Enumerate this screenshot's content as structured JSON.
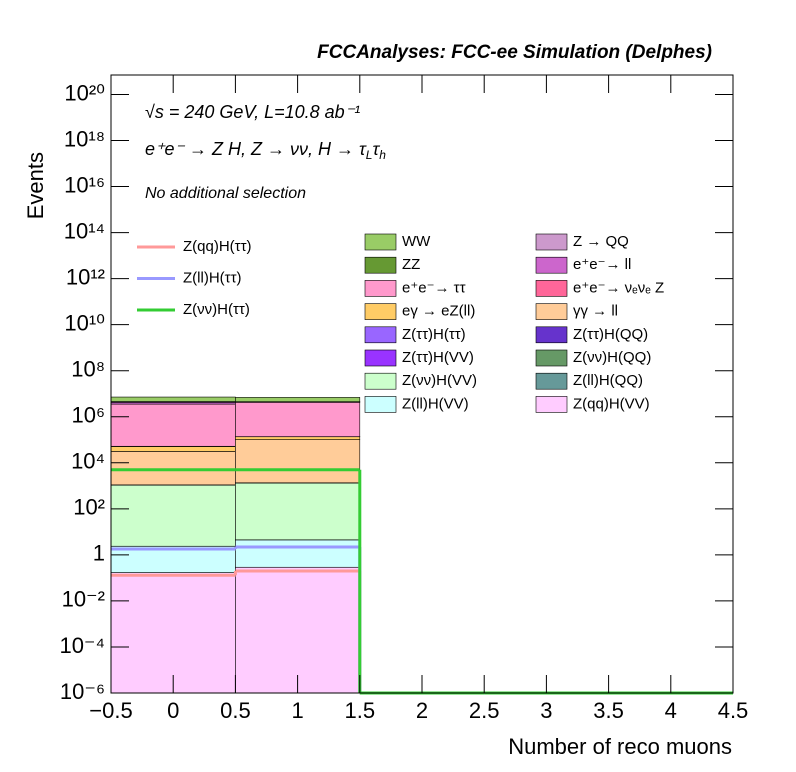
{
  "chart_data": {
    "type": "stacked_histogram",
    "title": "FCCAnalyses: FCC-ee Simulation (Delphes)",
    "energy_text": "√s = 240 GeV, L=10.8 ab⁻¹",
    "process_parts": [
      {
        "text": "e⁺e⁻ → Z H, Z → νν, H → τ"
      },
      {
        "text": "L",
        "sub": true
      },
      {
        "text": "τ"
      },
      {
        "text": "h",
        "sub": true
      }
    ],
    "selection_text": "No additional selection",
    "x_label": "Number of reco muons",
    "y_label": "Events",
    "log_y": true,
    "bins": [
      -0.5,
      0.5,
      1.5,
      2.5,
      3.5,
      4.5
    ],
    "xlim": [
      -0.5,
      4.5
    ],
    "ylim": [
      1e-06,
      7e+20
    ],
    "xticks": [
      {
        "value": -0.5,
        "label": "−0.5"
      },
      0,
      0.5,
      1,
      1.5,
      2,
      2.5,
      3,
      3.5,
      4,
      4.5
    ],
    "yticks": [
      {
        "value": 1e-06,
        "label": "10⁻⁶"
      },
      {
        "value": 0.0001,
        "label": "10⁻⁴"
      },
      {
        "value": 0.01,
        "label": "10⁻²"
      },
      1,
      {
        "value": 100,
        "label": "10²"
      },
      {
        "value": 10000,
        "label": "10⁴"
      },
      {
        "value": 1000000.0,
        "label": "10⁶"
      },
      {
        "value": 100000000.0,
        "label": "10⁸"
      },
      {
        "value": 10000000000.0,
        "label": "10¹⁰"
      },
      {
        "value": 1000000000000.0,
        "label": "10¹²"
      },
      {
        "value": 100000000000000.0,
        "label": "10¹⁴"
      },
      {
        "value": 1e+16,
        "label": "10¹⁶"
      },
      {
        "value": 1e+18,
        "label": "10¹⁸"
      },
      {
        "value": 1e+20,
        "label": "10²⁰"
      }
    ],
    "series": [
      {
        "name": "WW",
        "color": "#99cc66",
        "values": [
          2600000,
          2400000,
          0,
          0,
          0
        ]
      },
      {
        "name": "Z → QQ",
        "color": "#cc99cc",
        "values": [
          300000,
          100000,
          0,
          0,
          0
        ]
      },
      {
        "name": "ZZ",
        "color": "#669933",
        "values": [
          40000,
          30000,
          0,
          0,
          0
        ]
      },
      {
        "name": "e⁺e⁻→ ll",
        "color": "#cc66cc",
        "values": [
          680000,
          150000,
          0,
          0,
          0
        ]
      },
      {
        "name": "e⁺e⁻→ ττ",
        "color": "#ff99cc",
        "values": [
          3500000,
          4100000,
          0,
          0,
          0
        ]
      },
      {
        "name": "e⁺e⁻→ νₑνₑ Z",
        "color": "#ff6699",
        "values": [
          1100,
          1350,
          0,
          0,
          0
        ]
      },
      {
        "name": "eγ → eZ(ll)",
        "color": "#ffcc66",
        "values": [
          20000,
          34000,
          0,
          0,
          0
        ]
      },
      {
        "name": "γγ → ll",
        "color": "#ffcc99",
        "values": [
          30000,
          100000,
          0,
          0,
          0
        ]
      },
      {
        "name": "Z(ττ)H(ττ)",
        "color": "#9966ff",
        "values": [
          3,
          3,
          0,
          0,
          0
        ]
      },
      {
        "name": "Z(ττ)H(QQ)",
        "color": "#6633cc",
        "values": [
          4.5e-05,
          0,
          0,
          0,
          0
        ]
      },
      {
        "name": "Z(ττ)H(VV)",
        "color": "#9933ff",
        "values": [
          12,
          12.5,
          0,
          0,
          0
        ]
      },
      {
        "name": "Z(νν)H(QQ)",
        "color": "#669966",
        "values": [
          0.32,
          1.05,
          0,
          0,
          0
        ]
      },
      {
        "name": "Z(νν)H(VV)",
        "color": "#ccffcc",
        "values": [
          1080,
          1330,
          0,
          0,
          0
        ]
      },
      {
        "name": "Z(ll)H(QQ)",
        "color": "#669999",
        "values": [
          0.0068,
          0.0068,
          0,
          0,
          0
        ]
      },
      {
        "name": "Z(ll)H(VV)",
        "color": "#ccffff",
        "values": [
          2.2,
          4.2,
          0,
          0,
          0
        ]
      },
      {
        "name": "Z(qq)H(VV)",
        "color": "#ffccff",
        "values": [
          0.17,
          0.29,
          0,
          0,
          0
        ]
      }
    ],
    "lines": [
      {
        "name": "Z(qq)H(ττ)",
        "color": "#ff9999",
        "values": [
          0.13,
          0.2,
          0,
          0,
          0
        ]
      },
      {
        "name": "Z(ll)H(ττ)",
        "color": "#9999ff",
        "values": [
          1.8,
          2.2,
          0,
          0,
          0
        ]
      },
      {
        "name": "Z(νν)H(ττ)",
        "color": "#33cc33",
        "values": [
          5000,
          5000,
          0,
          0,
          0
        ]
      }
    ]
  }
}
